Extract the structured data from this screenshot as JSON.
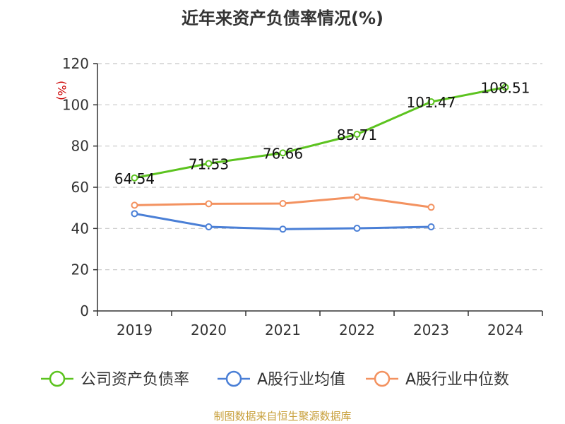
{
  "chart_data": {
    "type": "line",
    "title": "近年来资产负债率情况(%)",
    "ylabel": "(%)",
    "xlabel": "",
    "ylim": [
      0,
      120
    ],
    "yticks": [
      0,
      20,
      40,
      60,
      80,
      100,
      120
    ],
    "categories": [
      "2019",
      "2020",
      "2021",
      "2022",
      "2023",
      "2024"
    ],
    "grid": true,
    "legend_position": "bottom",
    "series": [
      {
        "name": "公司资产负债率",
        "color": "#5cc31f",
        "values": [
          64.54,
          71.53,
          76.66,
          85.71,
          101.47,
          108.51
        ],
        "show_labels": true
      },
      {
        "name": "A股行业均值",
        "color": "#4a7fd6",
        "values": [
          47.2,
          40.8,
          39.7,
          40.1,
          40.8,
          null
        ],
        "show_labels": false
      },
      {
        "name": "A股行业中位数",
        "color": "#f39260",
        "values": [
          51.3,
          52.0,
          52.1,
          55.3,
          50.3,
          null
        ],
        "show_labels": false
      }
    ],
    "source": "制图数据来自恒生聚源数据库"
  }
}
